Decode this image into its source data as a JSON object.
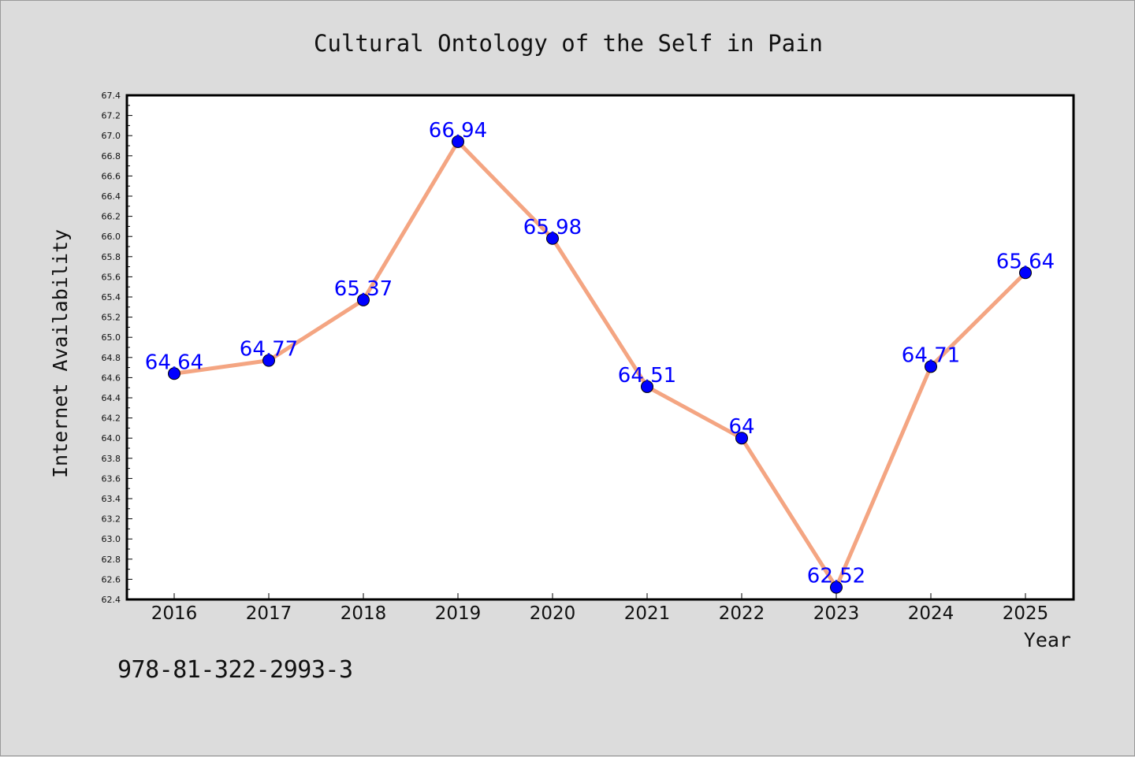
{
  "chart_data": {
    "type": "line",
    "title": "Cultural Ontology of the Self in Pain",
    "xlabel": "Year",
    "ylabel": "Internet Availability",
    "categories": [
      "2016",
      "2017",
      "2018",
      "2019",
      "2020",
      "2021",
      "2022",
      "2023",
      "2024",
      "2025"
    ],
    "values": [
      64.64,
      64.77,
      65.37,
      66.94,
      65.98,
      64.51,
      64,
      62.52,
      64.71,
      65.64
    ],
    "value_labels": [
      "64.64",
      "64.77",
      "65.37",
      "66.94",
      "65.98",
      "64.51",
      "64",
      "62.52",
      "64.71",
      "65.64"
    ],
    "ylim": [
      62.4,
      67.4
    ],
    "y_ticks": [
      "62.4",
      "62.6",
      "62.8",
      "63.0",
      "63.2",
      "63.4",
      "63.6",
      "63.8",
      "64.0",
      "64.2",
      "64.4",
      "64.6",
      "64.8",
      "65.0",
      "65.2",
      "65.4",
      "65.6",
      "65.8",
      "66.0",
      "66.2",
      "66.4",
      "66.6",
      "66.8",
      "67.0",
      "67.2",
      "67.4"
    ],
    "grid": false,
    "line_color": "#f4a582",
    "marker_color": "#0000ff",
    "label_color": "#0000ff"
  },
  "footer": {
    "code": "978-81-322-2993-3"
  }
}
